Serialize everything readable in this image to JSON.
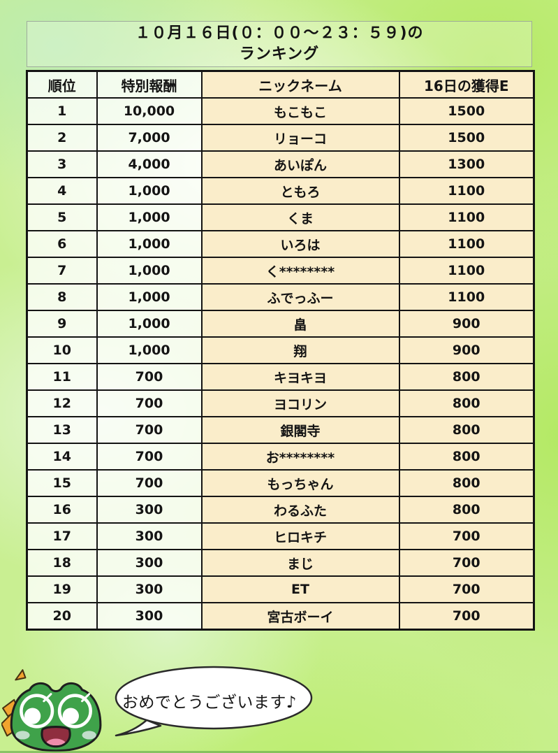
{
  "title": {
    "line1": "１０月１６日(０：００～２３：５９)の",
    "line2": "ランキング"
  },
  "chart_data": {
    "type": "table",
    "title": "１０月１６日(０：００～２３：５９)の ランキング",
    "headers": [
      "順位",
      "特別報酬",
      "ニックネーム",
      "16日の獲得E"
    ],
    "rows": [
      {
        "rank": "1",
        "reward": "10,000",
        "nickname": "もこもこ",
        "points": "1500"
      },
      {
        "rank": "2",
        "reward": "7,000",
        "nickname": "リョーコ",
        "points": "1500"
      },
      {
        "rank": "3",
        "reward": "4,000",
        "nickname": "あいぽん",
        "points": "1300"
      },
      {
        "rank": "4",
        "reward": "1,000",
        "nickname": "ともろ",
        "points": "1100"
      },
      {
        "rank": "5",
        "reward": "1,000",
        "nickname": "くま",
        "points": "1100"
      },
      {
        "rank": "6",
        "reward": "1,000",
        "nickname": "いろは",
        "points": "1100"
      },
      {
        "rank": "7",
        "reward": "1,000",
        "nickname": "く********",
        "points": "1100"
      },
      {
        "rank": "8",
        "reward": "1,000",
        "nickname": "ふでっふー",
        "points": "1100"
      },
      {
        "rank": "9",
        "reward": "1,000",
        "nickname": "畠",
        "points": "900"
      },
      {
        "rank": "10",
        "reward": "1,000",
        "nickname": "翔",
        "points": "900"
      },
      {
        "rank": "11",
        "reward": "700",
        "nickname": "キヨキヨ",
        "points": "800"
      },
      {
        "rank": "12",
        "reward": "700",
        "nickname": "ヨコリン",
        "points": "800"
      },
      {
        "rank": "13",
        "reward": "700",
        "nickname": "銀閣寺",
        "points": "800"
      },
      {
        "rank": "14",
        "reward": "700",
        "nickname": "お********",
        "points": "800"
      },
      {
        "rank": "15",
        "reward": "700",
        "nickname": "もっちゃん",
        "points": "800"
      },
      {
        "rank": "16",
        "reward": "300",
        "nickname": "わるふた",
        "points": "800"
      },
      {
        "rank": "17",
        "reward": "300",
        "nickname": "ヒロキチ",
        "points": "700"
      },
      {
        "rank": "18",
        "reward": "300",
        "nickname": "まじ",
        "points": "700"
      },
      {
        "rank": "19",
        "reward": "300",
        "nickname": "ET",
        "points": "700"
      },
      {
        "rank": "20",
        "reward": "300",
        "nickname": "宮古ボーイ",
        "points": "700"
      }
    ]
  },
  "mascot": {
    "speech": "おめでとうございます♪"
  },
  "colors": {
    "cell_peach": "#faedca",
    "table_border": "#141414",
    "background_green": "#c9ef92",
    "frog_green": "#3fa24a",
    "bow_orange": "#f1a42f",
    "mouth_red": "#8f2e3f",
    "tongue_pink": "#ee8cab"
  }
}
